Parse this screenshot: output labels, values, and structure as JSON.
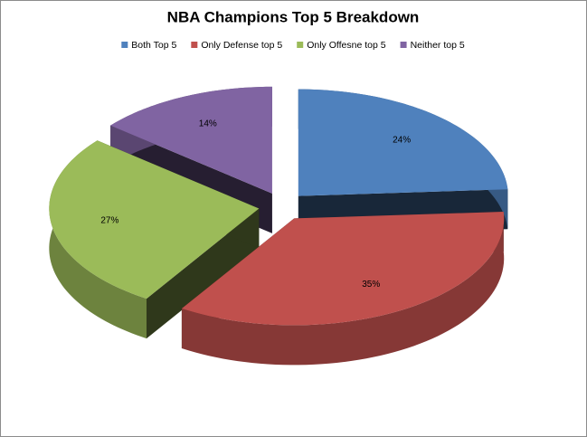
{
  "chart_data": {
    "type": "pie",
    "title": "NBA Champions Top 5 Breakdown",
    "categories": [
      "Both Top 5",
      "Only Defense top 5",
      "Only Offesne top 5",
      "Neither top 5"
    ],
    "values": [
      24,
      35,
      27,
      14
    ],
    "value_labels": [
      "24%",
      "35%",
      "27%",
      "14%"
    ],
    "colors": [
      "#4f81bd",
      "#c0504d",
      "#9bbb59",
      "#8064a2"
    ],
    "legend": "top"
  }
}
